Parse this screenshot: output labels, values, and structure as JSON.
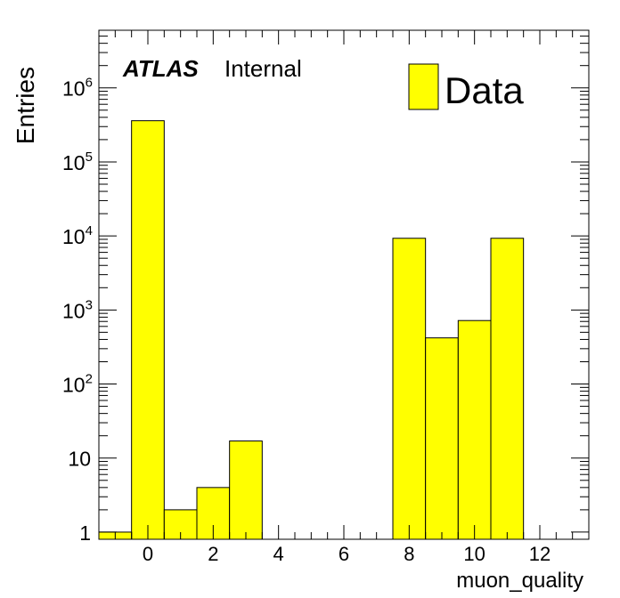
{
  "chart_data": {
    "type": "bar",
    "title": "",
    "xlabel": "muon_quality",
    "ylabel": "Entries",
    "yscale": "log",
    "xlim": [
      -1.5,
      13.5
    ],
    "ylim": [
      0.8,
      6000000
    ],
    "bins": [
      {
        "low": -0.5,
        "high": 0.5,
        "value": 360000
      },
      {
        "low": 0.5,
        "high": 1.5,
        "value": 2
      },
      {
        "low": 1.5,
        "high": 2.5,
        "value": 4
      },
      {
        "low": 2.5,
        "high": 3.5,
        "value": 17
      },
      {
        "low": 7.5,
        "high": 8.5,
        "value": 9300
      },
      {
        "low": 8.5,
        "high": 9.5,
        "value": 420
      },
      {
        "low": 9.5,
        "high": 10.5,
        "value": 720
      },
      {
        "low": 10.5,
        "high": 11.5,
        "value": 9300
      }
    ],
    "x_ticks": [
      {
        "value": 0,
        "label": "0"
      },
      {
        "value": 2,
        "label": "2"
      },
      {
        "value": 4,
        "label": "4"
      },
      {
        "value": 6,
        "label": "6"
      },
      {
        "value": 8,
        "label": "8"
      },
      {
        "value": 10,
        "label": "10"
      },
      {
        "value": 12,
        "label": "12"
      }
    ],
    "y_ticks": [
      {
        "value": 1,
        "base": "1",
        "exp": ""
      },
      {
        "value": 10,
        "base": "10",
        "exp": ""
      },
      {
        "value": 100,
        "base": "10",
        "exp": "2"
      },
      {
        "value": 1000,
        "base": "10",
        "exp": "3"
      },
      {
        "value": 10000,
        "base": "10",
        "exp": "4"
      },
      {
        "value": 100000,
        "base": "10",
        "exp": "5"
      },
      {
        "value": 1000000,
        "base": "10",
        "exp": "6"
      }
    ],
    "series": [
      {
        "name": "Data",
        "color": "#ffff00"
      }
    ],
    "legend_position": "top-right",
    "grid": false,
    "annotation": {
      "atlas": "ATLAS",
      "status": "Internal"
    }
  }
}
